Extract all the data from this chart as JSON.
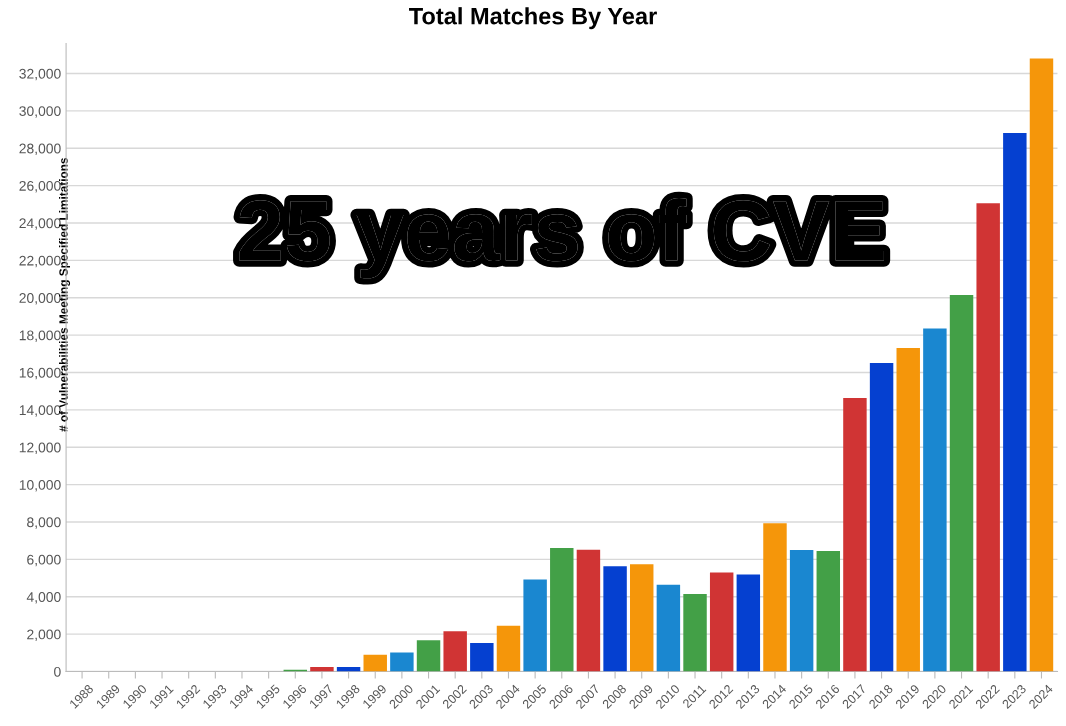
{
  "chart_data": {
    "type": "bar",
    "title": "Total Matches By Year",
    "ylabel": "# of Vulnerabilities Meeting Specified Limitations",
    "annotations": [
      "25 years of CVE"
    ],
    "categories": [
      "1988",
      "1989",
      "1990",
      "1991",
      "1992",
      "1993",
      "1994",
      "1995",
      "1996",
      "1997",
      "1998",
      "1999",
      "2000",
      "2001",
      "2002",
      "2003",
      "2004",
      "2005",
      "2006",
      "2007",
      "2008",
      "2009",
      "2010",
      "2011",
      "2012",
      "2013",
      "2014",
      "2015",
      "2016",
      "2017",
      "2018",
      "2019",
      "2020",
      "2021",
      "2022",
      "2023",
      "2024"
    ],
    "values": [
      0,
      0,
      0,
      0,
      0,
      0,
      0,
      0,
      100,
      250,
      250,
      900,
      1020,
      1680,
      2150,
      1530,
      2450,
      4930,
      6610,
      6520,
      5630,
      5740,
      4650,
      4150,
      5300,
      5190,
      7940,
      6500,
      6450,
      14640,
      16510,
      17310,
      18350,
      20150,
      25050,
      28820,
      32800
    ],
    "colors": [
      "#d03434",
      "#0540d0",
      "#1a87d0",
      "#1a87d0",
      "#43a047",
      "#d03434",
      "#0540d0",
      "#f5960a",
      "#43a047",
      "#d03434",
      "#0540d0",
      "#f5960a",
      "#1a87d0",
      "#43a047",
      "#d03434",
      "#0540d0",
      "#f5960a",
      "#1a87d0",
      "#43a047",
      "#d03434",
      "#0540d0",
      "#f5960a",
      "#1a87d0",
      "#43a047",
      "#d03434",
      "#0540d0",
      "#f5960a",
      "#1a87d0",
      "#43a047",
      "#d03434",
      "#0540d0",
      "#f5960a",
      "#1a87d0",
      "#43a047",
      "#d03434",
      "#0540d0",
      "#f5960a"
    ],
    "ylim": [
      0,
      33600
    ],
    "yticks": [
      0,
      {
        "value": 2000,
        "label": "2,000"
      },
      {
        "value": 4000,
        "label": "4,000"
      },
      {
        "value": 6000,
        "label": "6,000"
      },
      {
        "value": 8000,
        "label": "8,000"
      },
      {
        "value": 10000,
        "label": "10,000"
      },
      {
        "value": 12000,
        "label": "12,000"
      },
      {
        "value": 14000,
        "label": "14,000"
      },
      {
        "value": 16000,
        "label": "16,000"
      },
      {
        "value": 18000,
        "label": "18,000"
      },
      {
        "value": 20000,
        "label": "20,000"
      },
      {
        "value": 22000,
        "label": "22,000"
      },
      {
        "value": 24000,
        "label": "24,000"
      },
      {
        "value": 26000,
        "label": "26,000"
      },
      {
        "value": 28000,
        "label": "28,000"
      },
      {
        "value": 30000,
        "label": "30,000"
      },
      {
        "value": 32000,
        "label": "32,000"
      }
    ],
    "grid": "y"
  }
}
